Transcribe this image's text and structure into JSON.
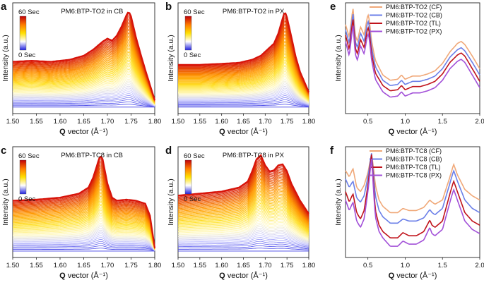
{
  "figure": {
    "panel_letters": [
      "a",
      "b",
      "c",
      "d",
      "e",
      "f"
    ]
  },
  "chart_data": [
    {
      "panel": "a",
      "type": "line",
      "title": "PM6:BTP-TO2 in CB",
      "xlabel_bold": "Q",
      "xlabel_rest": " vector (Å⁻¹)",
      "ylabel": "Intensity (a.u.)",
      "xlim": [
        1.5,
        1.8
      ],
      "xticks": [
        "1.50",
        "1.55",
        "1.60",
        "1.65",
        "1.70",
        "1.75",
        "1.80"
      ],
      "colorbar": {
        "top": "60 Sec",
        "bottom": "0 Sec"
      },
      "n_frames": 60,
      "profile_x": [
        1.5,
        1.54,
        1.58,
        1.62,
        1.65,
        1.67,
        1.69,
        1.7,
        1.71,
        1.72,
        1.73,
        1.74,
        1.745,
        1.75,
        1.76,
        1.77,
        1.78,
        1.8
      ],
      "profile_y_final": [
        0.5,
        0.51,
        0.5,
        0.52,
        0.56,
        0.62,
        0.7,
        0.73,
        0.71,
        0.76,
        0.85,
        0.96,
        1.0,
        0.95,
        0.75,
        0.58,
        0.42,
        0.12
      ],
      "baseline_y_initial": 0.05
    },
    {
      "panel": "b",
      "type": "line",
      "title": "PM6:BTP-TO2 in PX",
      "xlabel_bold": "Q",
      "xlabel_rest": " vector (Å⁻¹)",
      "ylabel": "Intensity (a.u.)",
      "xlim": [
        1.5,
        1.8
      ],
      "xticks": [
        "1.50",
        "1.55",
        "1.60",
        "1.65",
        "1.70",
        "1.75",
        "1.80"
      ],
      "colorbar": {
        "top": "60 Sec",
        "bottom": "0 Sec"
      },
      "n_frames": 60,
      "profile_x": [
        1.5,
        1.55,
        1.6,
        1.64,
        1.67,
        1.69,
        1.7,
        1.71,
        1.72,
        1.73,
        1.74,
        1.745,
        1.75,
        1.76,
        1.77,
        1.78,
        1.8
      ],
      "profile_y_final": [
        0.47,
        0.47,
        0.48,
        0.49,
        0.52,
        0.56,
        0.6,
        0.64,
        0.68,
        0.78,
        0.93,
        1.0,
        0.94,
        0.75,
        0.55,
        0.4,
        0.2
      ],
      "baseline_y_initial": 0.05
    },
    {
      "panel": "c",
      "type": "line",
      "title": "PM6:BTP-TC8 in CB",
      "xlabel_bold": "Q",
      "xlabel_rest": " vector (Å⁻¹)",
      "ylabel": "Intensity (a.u.)",
      "xlim": [
        1.5,
        1.8
      ],
      "xticks": [
        "1.50",
        "1.55",
        "1.60",
        "1.65",
        "1.70",
        "1.75",
        "1.80"
      ],
      "colorbar": {
        "top": "60 Sec",
        "bottom": "0 Sec"
      },
      "n_frames": 60,
      "profile_x": [
        1.5,
        1.55,
        1.6,
        1.64,
        1.66,
        1.67,
        1.68,
        1.685,
        1.69,
        1.7,
        1.71,
        1.72,
        1.74,
        1.76,
        1.78,
        1.79,
        1.8
      ],
      "profile_y_final": [
        0.55,
        0.56,
        0.58,
        0.62,
        0.68,
        0.78,
        0.93,
        1.0,
        0.96,
        0.72,
        0.58,
        0.55,
        0.56,
        0.55,
        0.52,
        0.4,
        0.08
      ],
      "baseline_y_initial": 0.05
    },
    {
      "panel": "d",
      "type": "line",
      "title": "PM6:BTP-TC8 in PX",
      "xlabel_bold": "Q",
      "xlabel_rest": " vector (Å⁻¹)",
      "ylabel": "Intensity (a.u.)",
      "xlim": [
        1.5,
        1.8
      ],
      "xticks": [
        "1.50",
        "1.55",
        "1.60",
        "1.65",
        "1.70",
        "1.75",
        "1.80"
      ],
      "colorbar": {
        "top": "60 Sec",
        "bottom": "0 Sec"
      },
      "n_frames": 60,
      "profile_x": [
        1.5,
        1.55,
        1.6,
        1.64,
        1.66,
        1.67,
        1.68,
        1.69,
        1.7,
        1.71,
        1.72,
        1.73,
        1.74,
        1.75,
        1.76,
        1.78,
        1.8
      ],
      "profile_y_final": [
        0.6,
        0.62,
        0.64,
        0.68,
        0.74,
        0.84,
        0.96,
        1.0,
        0.9,
        0.84,
        0.85,
        0.9,
        0.91,
        0.84,
        0.72,
        0.55,
        0.42
      ],
      "baseline_y_initial": 0.05
    },
    {
      "panel": "e",
      "type": "line",
      "xlabel_bold": "Q",
      "xlabel_rest": " vector (Å⁻¹)",
      "ylabel": "Intensity (a.u.)",
      "xlim": [
        0.2,
        2.0
      ],
      "xticks": [
        "0.5",
        "1.0",
        "1.5",
        "2.0"
      ],
      "legend_position": "top-right",
      "x": [
        0.2,
        0.25,
        0.3,
        0.33,
        0.36,
        0.4,
        0.45,
        0.5,
        0.52,
        0.55,
        0.6,
        0.7,
        0.8,
        0.9,
        0.95,
        1.0,
        1.1,
        1.2,
        1.3,
        1.4,
        1.5,
        1.6,
        1.7,
        1.75,
        1.8,
        1.9,
        2.0
      ],
      "series": [
        {
          "name": "PM6:BTP-TO2 (CF)",
          "color": "#f0a878",
          "values": [
            0.82,
            0.7,
            0.98,
            0.72,
            0.66,
            0.8,
            0.72,
            0.92,
            0.86,
            0.66,
            0.48,
            0.34,
            0.29,
            0.3,
            0.34,
            0.3,
            0.33,
            0.33,
            0.35,
            0.38,
            0.45,
            0.56,
            0.64,
            0.66,
            0.63,
            0.52,
            0.4
          ]
        },
        {
          "name": "PM6:BTP-TO2 (CB)",
          "color": "#6b7fe8",
          "values": [
            0.77,
            0.64,
            0.93,
            0.66,
            0.6,
            0.74,
            0.66,
            0.86,
            0.8,
            0.6,
            0.42,
            0.29,
            0.24,
            0.25,
            0.29,
            0.25,
            0.28,
            0.28,
            0.3,
            0.33,
            0.4,
            0.51,
            0.58,
            0.6,
            0.57,
            0.46,
            0.34
          ]
        },
        {
          "name": "PM6:BTP-TO2 (TL)",
          "color": "#c0131b",
          "values": [
            0.72,
            0.58,
            0.88,
            0.6,
            0.54,
            0.68,
            0.6,
            0.8,
            0.74,
            0.54,
            0.36,
            0.24,
            0.19,
            0.2,
            0.24,
            0.2,
            0.23,
            0.23,
            0.25,
            0.28,
            0.35,
            0.46,
            0.53,
            0.55,
            0.52,
            0.4,
            0.28
          ]
        },
        {
          "name": "PM6:BTP-TO2 (PX)",
          "color": "#a250d8",
          "values": [
            0.66,
            0.52,
            0.82,
            0.54,
            0.48,
            0.62,
            0.54,
            0.74,
            0.68,
            0.48,
            0.3,
            0.18,
            0.13,
            0.14,
            0.18,
            0.14,
            0.17,
            0.17,
            0.19,
            0.22,
            0.29,
            0.4,
            0.47,
            0.49,
            0.46,
            0.34,
            0.22
          ]
        }
      ]
    },
    {
      "panel": "f",
      "type": "line",
      "xlabel_bold": "Q",
      "xlabel_rest": " vector (Å⁻¹)",
      "ylabel": "Intensity (a.u.)",
      "xlim": [
        0.2,
        2.0
      ],
      "xticks": [
        "0.5",
        "1.0",
        "1.5",
        "2.0"
      ],
      "legend_position": "top-right",
      "x": [
        0.2,
        0.25,
        0.3,
        0.35,
        0.4,
        0.45,
        0.5,
        0.55,
        0.58,
        0.6,
        0.65,
        0.7,
        0.8,
        0.9,
        0.97,
        1.05,
        1.15,
        1.25,
        1.33,
        1.36,
        1.4,
        1.5,
        1.6,
        1.65,
        1.7,
        1.8,
        1.9,
        2.0
      ],
      "series": [
        {
          "name": "PM6:BTP-TC8 (CF)",
          "color": "#f0a878",
          "values": [
            0.8,
            0.74,
            0.82,
            0.64,
            0.6,
            0.66,
            0.78,
            0.96,
            0.8,
            0.66,
            0.52,
            0.46,
            0.4,
            0.4,
            0.44,
            0.42,
            0.42,
            0.45,
            0.52,
            0.5,
            0.48,
            0.52,
            0.74,
            0.86,
            0.76,
            0.62,
            0.56,
            0.52
          ]
        },
        {
          "name": "PM6:BTP-TC8 (CB)",
          "color": "#6b7fe8",
          "values": [
            0.72,
            0.64,
            0.7,
            0.54,
            0.5,
            0.56,
            0.74,
            0.97,
            0.72,
            0.56,
            0.42,
            0.36,
            0.3,
            0.3,
            0.34,
            0.32,
            0.32,
            0.35,
            0.43,
            0.4,
            0.38,
            0.44,
            0.68,
            0.8,
            0.7,
            0.52,
            0.44,
            0.4
          ]
        },
        {
          "name": "PM6:BTP-TC8 (TL)",
          "color": "#c0131b",
          "values": [
            0.6,
            0.5,
            0.58,
            0.4,
            0.34,
            0.42,
            0.66,
            0.96,
            0.62,
            0.42,
            0.28,
            0.22,
            0.16,
            0.16,
            0.21,
            0.18,
            0.18,
            0.22,
            0.33,
            0.28,
            0.26,
            0.32,
            0.58,
            0.7,
            0.6,
            0.4,
            0.32,
            0.28
          ]
        },
        {
          "name": "PM6:BTP-TC8 (PX)",
          "color": "#a250d8",
          "values": [
            0.52,
            0.42,
            0.5,
            0.32,
            0.26,
            0.34,
            0.6,
            0.92,
            0.56,
            0.36,
            0.22,
            0.16,
            0.08,
            0.08,
            0.13,
            0.1,
            0.1,
            0.14,
            0.26,
            0.2,
            0.18,
            0.24,
            0.5,
            0.62,
            0.52,
            0.32,
            0.24,
            0.2
          ]
        }
      ]
    }
  ]
}
